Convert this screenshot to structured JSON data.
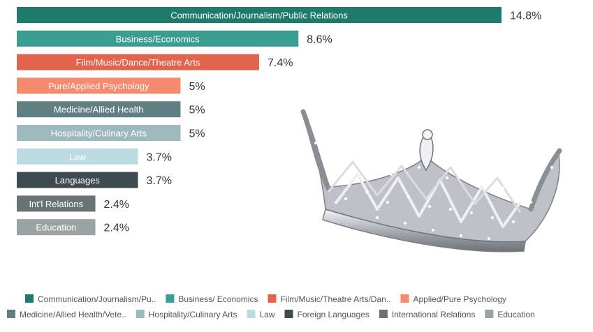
{
  "chart_data": {
    "type": "bar",
    "orientation": "horizontal",
    "categories": [
      "Communication/Journalism/Public Relations",
      "Business/Economics",
      "Film/Music/Dance/Theatre Arts",
      "Pure/Applied Psychology",
      "Medicine/Allied Health",
      "Hospitality/Culinary Arts",
      "Law",
      "Languages",
      "Int'l Relations",
      "Education"
    ],
    "values": [
      14.8,
      8.6,
      7.4,
      5,
      5,
      5,
      3.7,
      3.7,
      2.4,
      2.4
    ],
    "value_labels": [
      "14.8%",
      "8.6%",
      "7.4%",
      "5%",
      "5%",
      "5%",
      "3.7%",
      "3.7%",
      "2.4%",
      "2.4%"
    ],
    "colors": [
      "#1e7a6a",
      "#3a9d92",
      "#e2644c",
      "#f68a6e",
      "#5f7f82",
      "#9db9bd",
      "#bcdbe0",
      "#3d4a4f",
      "#6a7373",
      "#9aa3a4"
    ],
    "legend": {
      "placement": "bottom",
      "entries": [
        "Communication/Journalism/Pu..",
        "Business/ Economics",
        "Film/Music/Theatre Arts/Dan..",
        "Applied/Pure Psychology",
        "Medicine/Allied Health/Vete..",
        "Hospitality/Culinary Arts",
        "Law",
        "Foreign Languages",
        "International Relations",
        "Education"
      ]
    },
    "grid": false,
    "image": "tiara-crown"
  }
}
